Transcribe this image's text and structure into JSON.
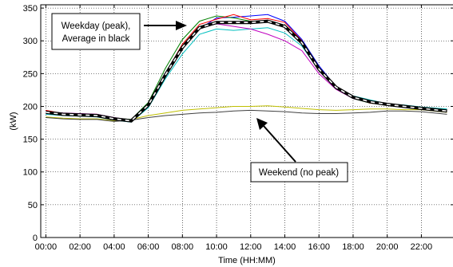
{
  "chart_data": {
    "type": "line",
    "title": "",
    "xlabel": "Time (HH:MM)",
    "ylabel": "(kW)",
    "xlim": [
      -0.3,
      23.9
    ],
    "ylim": [
      0,
      355
    ],
    "grid": true,
    "x_ticks": [
      {
        "value": 0,
        "label": "00:00"
      },
      {
        "value": 2,
        "label": "02:00"
      },
      {
        "value": 4,
        "label": "04:00"
      },
      {
        "value": 6,
        "label": "06:00"
      },
      {
        "value": 8,
        "label": "08:00"
      },
      {
        "value": 10,
        "label": "10:00"
      },
      {
        "value": 12,
        "label": "12:00"
      },
      {
        "value": 14,
        "label": "14:00"
      },
      {
        "value": 16,
        "label": "16:00"
      },
      {
        "value": 18,
        "label": "18:00"
      },
      {
        "value": 20,
        "label": "20:00"
      },
      {
        "value": 22,
        "label": "22:00"
      }
    ],
    "y_ticks": [
      0,
      50,
      100,
      150,
      200,
      250,
      300,
      350
    ],
    "x": [
      0,
      1,
      2,
      3,
      4,
      5,
      6,
      7,
      8,
      9,
      10,
      11,
      12,
      13,
      14,
      15,
      16,
      17,
      18,
      19,
      20,
      21,
      22,
      23.5
    ],
    "series": [
      {
        "color": "#0000ff",
        "values": [
          190,
          187,
          186,
          186,
          180,
          177,
          200,
          245,
          288,
          318,
          335,
          336,
          338,
          340,
          330,
          302,
          262,
          230,
          214,
          206,
          203,
          199,
          196,
          193
        ]
      },
      {
        "color": "#008000",
        "values": [
          193,
          189,
          188,
          187,
          182,
          180,
          206,
          258,
          302,
          330,
          338,
          335,
          330,
          330,
          322,
          296,
          256,
          228,
          212,
          205,
          202,
          200,
          197,
          194
        ]
      },
      {
        "color": "#ff0000",
        "values": [
          194,
          189,
          188,
          188,
          181,
          178,
          202,
          250,
          295,
          325,
          333,
          340,
          332,
          334,
          328,
          300,
          258,
          229,
          214,
          205,
          203,
          201,
          198,
          192
        ]
      },
      {
        "color": "#00bfbf",
        "values": [
          188,
          186,
          185,
          184,
          179,
          176,
          198,
          242,
          280,
          310,
          318,
          316,
          318,
          320,
          312,
          292,
          255,
          230,
          216,
          210,
          204,
          202,
          199,
          196
        ]
      },
      {
        "color": "#bf00bf",
        "values": [
          192,
          190,
          189,
          188,
          183,
          179,
          203,
          248,
          290,
          320,
          326,
          322,
          318,
          310,
          300,
          285,
          250,
          226,
          212,
          206,
          202,
          199,
          196,
          192
        ]
      },
      {
        "color": "#bfbf00",
        "values": [
          184,
          182,
          181,
          181,
          178,
          180,
          186,
          190,
          194,
          196,
          198,
          200,
          200,
          201,
          199,
          197,
          195,
          194,
          195,
          196,
          196,
          195,
          195,
          191
        ]
      },
      {
        "color": "#404040",
        "values": [
          183,
          181,
          180,
          180,
          177,
          179,
          183,
          186,
          188,
          190,
          191,
          193,
          194,
          193,
          192,
          190,
          189,
          189,
          190,
          191,
          193,
          193,
          192,
          188
        ]
      }
    ],
    "average": {
      "name": "Average",
      "color": "#000000",
      "values": [
        191,
        188,
        187,
        186,
        181,
        178,
        202,
        248,
        290,
        320,
        328,
        328,
        328,
        330,
        322,
        297,
        257,
        229,
        214,
        207,
        203,
        200,
        197,
        193
      ]
    },
    "annotations": [
      {
        "lines": [
          "Weekday (peak),",
          "Average in black"
        ]
      },
      {
        "lines": [
          "Weekend (no peak)"
        ]
      }
    ]
  }
}
